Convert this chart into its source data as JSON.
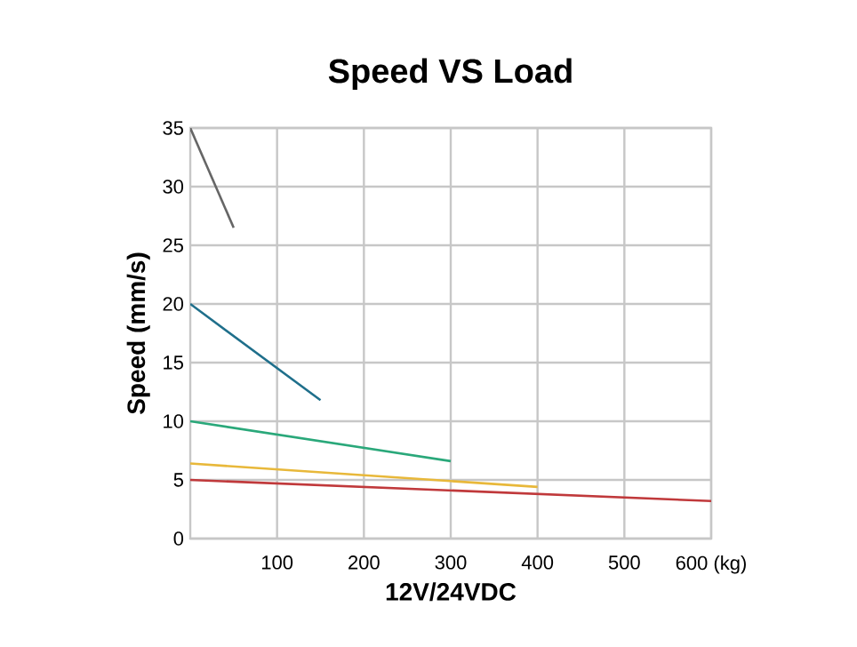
{
  "chart_data": {
    "type": "line",
    "title": "Speed VS Load",
    "xlabel": "12V/24VDC",
    "ylabel": "Speed (mm/s)",
    "xlim": [
      0,
      600
    ],
    "ylim": [
      0,
      35
    ],
    "xticks": [
      100,
      200,
      300,
      400,
      500,
      {
        "value": 600,
        "label": "600 (kg)"
      }
    ],
    "yticks": [
      0,
      5,
      10,
      15,
      20,
      25,
      30,
      35
    ],
    "grid": true,
    "marker": "none",
    "line_style": "solid",
    "series": [
      {
        "color": "#666666",
        "x": [
          0,
          50
        ],
        "values": [
          35,
          26.5
        ]
      },
      {
        "color": "#1f6f8b",
        "x": [
          0,
          150
        ],
        "values": [
          20,
          11.8
        ]
      },
      {
        "color": "#2aa87a",
        "x": [
          0,
          300
        ],
        "values": [
          10,
          6.6
        ]
      },
      {
        "color": "#e8b83a",
        "x": [
          0,
          400
        ],
        "values": [
          6.4,
          4.4
        ]
      },
      {
        "color": "#c0393b",
        "x": [
          0,
          600
        ],
        "values": [
          5.0,
          3.2
        ]
      }
    ]
  }
}
